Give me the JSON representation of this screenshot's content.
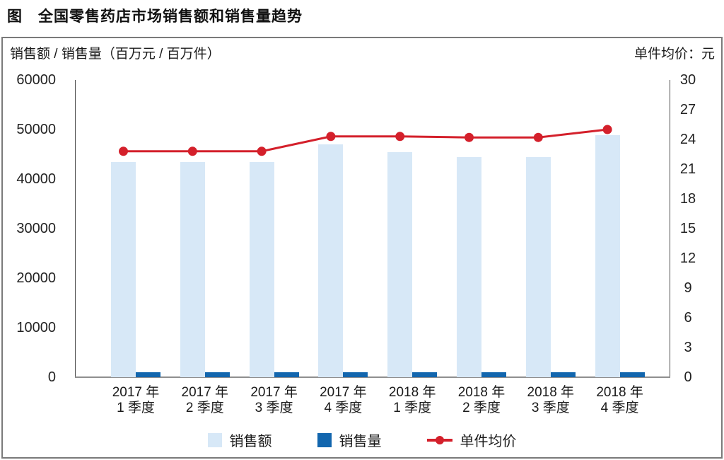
{
  "title": "图　全国零售药店市场销售额和销售量趋势",
  "panel": {
    "left_axis_title": "销售额 / 销售量（百万元 / 百万件）",
    "right_axis_title": "单件均价：元"
  },
  "chart_data": {
    "type": "combo-bar-line",
    "categories": [
      [
        "2017 年",
        "1 季度"
      ],
      [
        "2017 年",
        "2 季度"
      ],
      [
        "2017 年",
        "3 季度"
      ],
      [
        "2017 年",
        "4 季度"
      ],
      [
        "2018 年",
        "1 季度"
      ],
      [
        "2018 年",
        "2 季度"
      ],
      [
        "2018 年",
        "3 季度"
      ],
      [
        "2018 年",
        "4 季度"
      ]
    ],
    "series": [
      {
        "name": "销售额",
        "type": "bar",
        "axis": "left",
        "values": [
          43500,
          43500,
          43500,
          47000,
          45500,
          44500,
          44500,
          48800
        ]
      },
      {
        "name": "销售量",
        "type": "bar",
        "axis": "left",
        "values": [
          1000,
          1000,
          1000,
          1000,
          1000,
          1000,
          1000,
          1000
        ]
      },
      {
        "name": "单件均价",
        "type": "line",
        "axis": "right",
        "values": [
          22.8,
          22.8,
          22.8,
          24.3,
          24.3,
          24.2,
          24.2,
          25.0
        ]
      }
    ],
    "left_axis": {
      "min": 0,
      "max": 60000,
      "step": 10000,
      "ticks": [
        0,
        10000,
        20000,
        30000,
        40000,
        50000,
        60000
      ]
    },
    "right_axis": {
      "min": 0,
      "max": 30,
      "step": 3,
      "ticks": [
        0,
        3,
        6,
        9,
        12,
        15,
        18,
        21,
        24,
        27,
        30
      ]
    },
    "grid": false,
    "legend_position": "bottom"
  },
  "legend": {
    "items": [
      {
        "label": "销售额",
        "swatch": "light-blue-square"
      },
      {
        "label": "销售量",
        "swatch": "dark-blue-square"
      },
      {
        "label": "单件均价",
        "swatch": "red-line-marker"
      }
    ]
  },
  "colors": {
    "sales_bar": "#D7E8F7",
    "volume_bar": "#1266AE",
    "price_line": "#D4202B",
    "axis_line": "#4d4d4d",
    "baseline": "#8f8f8f",
    "panel_border": "#7a7a7a",
    "text": "#1a1a1a"
  }
}
